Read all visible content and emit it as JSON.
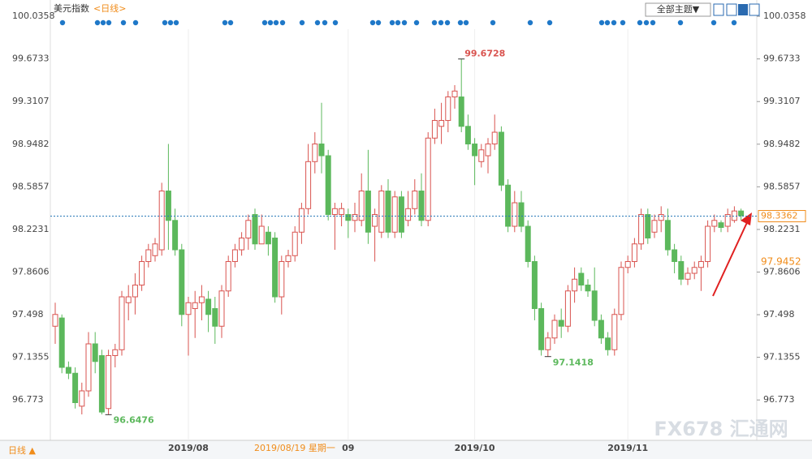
{
  "chart_data": {
    "type": "candlestick",
    "title": "美元指数",
    "period": "<日线>",
    "ylim": [
      96.45,
      100.14
    ],
    "yticks": [
      100.0358,
      99.6733,
      99.3107,
      98.9482,
      98.5857,
      98.2231,
      97.8606,
      97.498,
      97.1355,
      96.773
    ],
    "categories": [
      null,
      null,
      null,
      null,
      null,
      null,
      null,
      null,
      null,
      null,
      null,
      null,
      null,
      null,
      null,
      null,
      null,
      null,
      null,
      null,
      "2019/08",
      null,
      null,
      null,
      null,
      null,
      null,
      null,
      null,
      null,
      null,
      null,
      null,
      null,
      null,
      null,
      null,
      null,
      null,
      null,
      null,
      null,
      null,
      null,
      "09",
      null,
      null,
      null,
      null,
      null,
      null,
      null,
      null,
      null,
      null,
      null,
      null,
      null,
      null,
      null,
      null,
      null,
      null,
      "2019/10",
      null,
      null,
      null,
      null,
      null,
      null,
      null,
      null,
      null,
      null,
      null,
      null,
      null,
      null,
      null,
      null,
      null,
      null,
      null,
      null,
      null,
      null,
      "2019/11",
      null,
      null,
      null,
      null,
      null,
      null,
      null,
      null,
      null,
      null,
      null,
      null,
      null,
      null,
      null,
      null,
      null
    ],
    "ohlc": [
      [
        97.4,
        97.6,
        97.25,
        97.5
      ],
      [
        97.47,
        97.5,
        97.0,
        97.05
      ],
      [
        97.05,
        97.1,
        96.95,
        97.0
      ],
      [
        97.0,
        97.05,
        96.7,
        96.75
      ],
      [
        96.72,
        96.92,
        96.65,
        96.85
      ],
      [
        96.85,
        97.35,
        96.8,
        97.25
      ],
      [
        97.25,
        97.35,
        97.0,
        97.1
      ],
      [
        97.15,
        97.2,
        96.65,
        96.67
      ],
      [
        96.7,
        97.2,
        96.6476,
        97.15
      ],
      [
        97.15,
        97.25,
        97.05,
        97.2
      ],
      [
        97.2,
        97.7,
        97.15,
        97.65
      ],
      [
        97.6,
        97.75,
        97.45,
        97.65
      ],
      [
        97.65,
        97.85,
        97.5,
        97.75
      ],
      [
        97.75,
        98.0,
        97.7,
        97.95
      ],
      [
        97.95,
        98.1,
        97.9,
        98.05
      ],
      [
        98.0,
        98.15,
        97.95,
        98.1
      ],
      [
        98.05,
        98.62,
        98.0,
        98.55
      ],
      [
        98.55,
        98.95,
        98.05,
        98.3
      ],
      [
        98.3,
        98.4,
        98.0,
        98.05
      ],
      [
        98.05,
        98.1,
        97.4,
        97.5
      ],
      [
        97.5,
        97.65,
        97.15,
        97.6
      ],
      [
        97.55,
        97.7,
        97.3,
        97.6
      ],
      [
        97.6,
        97.75,
        97.45,
        97.65
      ],
      [
        97.63,
        97.7,
        97.35,
        97.5
      ],
      [
        97.55,
        97.65,
        97.25,
        97.4
      ],
      [
        97.4,
        97.75,
        97.3,
        97.7
      ],
      [
        97.7,
        98.0,
        97.65,
        97.95
      ],
      [
        97.95,
        98.1,
        97.9,
        98.05
      ],
      [
        98.05,
        98.2,
        98.0,
        98.15
      ],
      [
        98.15,
        98.35,
        98.05,
        98.3
      ],
      [
        98.35,
        98.4,
        98.05,
        98.1
      ],
      [
        98.1,
        98.35,
        98.1,
        98.25
      ],
      [
        98.2,
        98.25,
        98.0,
        98.1
      ],
      [
        98.15,
        98.2,
        97.6,
        97.65
      ],
      [
        97.65,
        98.0,
        97.5,
        97.95
      ],
      [
        97.95,
        98.05,
        97.9,
        98.0
      ],
      [
        98.0,
        98.25,
        97.95,
        98.2
      ],
      [
        98.2,
        98.45,
        98.1,
        98.4
      ],
      [
        98.4,
        98.95,
        98.35,
        98.8
      ],
      [
        98.8,
        99.05,
        98.7,
        98.95
      ],
      [
        98.95,
        99.3,
        98.7,
        98.85
      ],
      [
        98.85,
        98.9,
        98.3,
        98.35
      ],
      [
        98.35,
        98.45,
        98.05,
        98.4
      ],
      [
        98.35,
        98.45,
        98.25,
        98.4
      ],
      [
        98.35,
        98.4,
        98.15,
        98.3
      ],
      [
        98.3,
        98.45,
        98.2,
        98.35
      ],
      [
        98.3,
        98.7,
        98.25,
        98.55
      ],
      [
        98.55,
        98.9,
        98.1,
        98.2
      ],
      [
        98.25,
        98.4,
        97.95,
        98.35
      ],
      [
        98.2,
        98.6,
        98.15,
        98.55
      ],
      [
        98.55,
        98.65,
        98.15,
        98.2
      ],
      [
        98.2,
        98.55,
        98.15,
        98.5
      ],
      [
        98.5,
        98.55,
        98.15,
        98.2
      ],
      [
        98.3,
        98.55,
        98.25,
        98.4
      ],
      [
        98.4,
        98.65,
        98.35,
        98.55
      ],
      [
        98.55,
        98.7,
        98.25,
        98.3
      ],
      [
        98.3,
        99.05,
        98.25,
        99.0
      ],
      [
        99.0,
        99.25,
        98.95,
        99.15
      ],
      [
        99.1,
        99.3,
        98.95,
        99.15
      ],
      [
        99.15,
        99.4,
        99.05,
        99.35
      ],
      [
        99.35,
        99.45,
        99.25,
        99.4
      ],
      [
        99.35,
        99.6728,
        99.05,
        99.1
      ],
      [
        99.1,
        99.2,
        98.9,
        98.95
      ],
      [
        98.95,
        99.0,
        98.6,
        98.85
      ],
      [
        98.8,
        98.95,
        98.75,
        98.9
      ],
      [
        98.85,
        99.0,
        98.7,
        98.95
      ],
      [
        98.95,
        99.2,
        98.9,
        99.05
      ],
      [
        99.05,
        99.1,
        98.55,
        98.6
      ],
      [
        98.6,
        98.65,
        98.2,
        98.25
      ],
      [
        98.25,
        98.55,
        98.2,
        98.45
      ],
      [
        98.45,
        98.55,
        98.2,
        98.25
      ],
      [
        98.25,
        98.3,
        97.9,
        97.95
      ],
      [
        97.95,
        98.0,
        97.45,
        97.55
      ],
      [
        97.55,
        97.6,
        97.15,
        97.2
      ],
      [
        97.2,
        97.35,
        97.1418,
        97.3
      ],
      [
        97.3,
        97.5,
        97.25,
        97.45
      ],
      [
        97.45,
        97.55,
        97.3,
        97.4
      ],
      [
        97.4,
        97.75,
        97.35,
        97.7
      ],
      [
        97.7,
        97.9,
        97.6,
        97.8
      ],
      [
        97.85,
        97.9,
        97.7,
        97.75
      ],
      [
        97.75,
        97.8,
        97.65,
        97.7
      ],
      [
        97.7,
        97.9,
        97.4,
        97.45
      ],
      [
        97.45,
        97.5,
        97.25,
        97.3
      ],
      [
        97.3,
        97.35,
        97.15,
        97.2
      ],
      [
        97.2,
        97.55,
        97.15,
        97.5
      ],
      [
        97.5,
        97.95,
        97.45,
        97.9
      ],
      [
        97.9,
        98.0,
        97.85,
        97.95
      ],
      [
        97.95,
        98.15,
        97.9,
        98.1
      ],
      [
        98.1,
        98.4,
        98.05,
        98.35
      ],
      [
        98.35,
        98.4,
        98.1,
        98.15
      ],
      [
        98.2,
        98.35,
        98.15,
        98.3
      ],
      [
        98.3,
        98.42,
        98.2,
        98.35
      ],
      [
        98.3,
        98.4,
        98.0,
        98.05
      ],
      [
        98.05,
        98.1,
        97.85,
        97.95
      ],
      [
        97.95,
        98.0,
        97.75,
        97.8
      ],
      [
        97.8,
        97.9,
        97.75,
        97.85
      ],
      [
        97.85,
        97.95,
        97.8,
        97.9
      ],
      [
        97.9,
        98.0,
        97.7,
        97.95
      ],
      [
        97.95,
        98.3,
        97.9,
        98.25
      ],
      [
        98.25,
        98.35,
        98.2,
        98.3
      ],
      [
        98.28,
        98.3,
        98.2,
        98.24
      ],
      [
        98.25,
        98.4,
        98.2,
        98.35
      ],
      [
        98.3,
        98.42,
        98.28,
        98.38
      ],
      [
        98.38,
        98.4,
        98.3,
        98.34
      ]
    ],
    "up_color": "#d9534f",
    "down_color": "#5cb85c",
    "max": 99.6728,
    "min": 96.6476,
    "local_min": 97.1418,
    "last_price": 98.3362,
    "level": 97.9452,
    "crosshair_label": "2019/08/19  星期一"
  },
  "ui": {
    "theme_button": "全部主题▼",
    "footer_period": "日线 ▲",
    "watermark": "FX678 汇通网"
  }
}
